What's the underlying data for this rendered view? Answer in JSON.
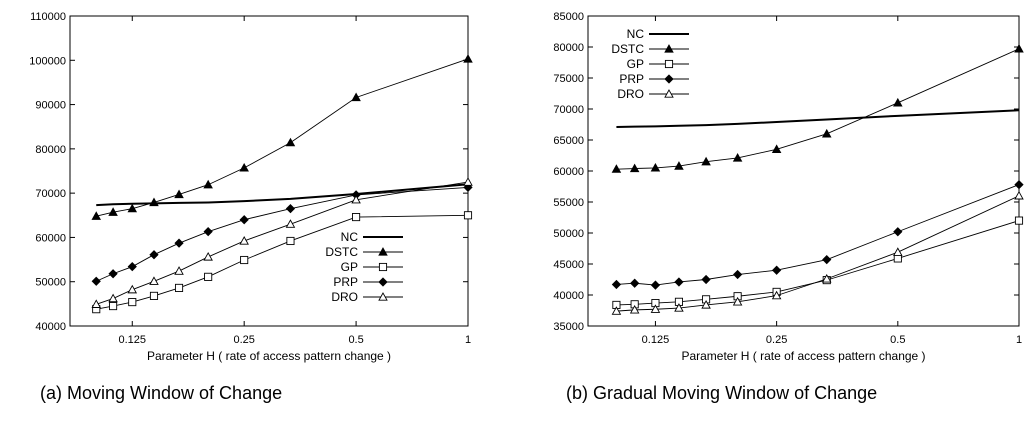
{
  "chart_data": [
    {
      "type": "line",
      "caption": "(a) Moving Window of Change",
      "xlabel": "Parameter H ( rate of access pattern change )",
      "ylabel": "",
      "x": [
        0.1,
        0.111,
        0.125,
        0.143,
        0.167,
        0.2,
        0.25,
        0.333,
        0.5,
        1
      ],
      "xscale": "log",
      "xticks": [
        0.125,
        0.25,
        0.5,
        1
      ],
      "xtick_labels": [
        "0.125",
        "0.25",
        "0.5",
        "1"
      ],
      "xlim": [
        0.085,
        1
      ],
      "ylim": [
        40000,
        110000
      ],
      "yticks": [
        40000,
        50000,
        60000,
        70000,
        80000,
        90000,
        100000,
        110000
      ],
      "ytick_labels": [
        "40000",
        "50000",
        "60000",
        "70000",
        "80000",
        "90000",
        "100000",
        "110000"
      ],
      "legend_position": "bottom-right",
      "series": [
        {
          "name": "NC",
          "marker": "none",
          "values": [
            67300,
            67500,
            67600,
            67700,
            67800,
            67900,
            68200,
            68700,
            69800,
            72000
          ]
        },
        {
          "name": "DSTC",
          "marker": "filled-triangle",
          "values": [
            64800,
            65700,
            66500,
            67900,
            69700,
            71900,
            75700,
            81400,
            91600,
            100300
          ]
        },
        {
          "name": "GP",
          "marker": "open-square",
          "values": [
            43800,
            44500,
            45400,
            46800,
            48600,
            51100,
            54900,
            59200,
            64600,
            65000
          ]
        },
        {
          "name": "PRP",
          "marker": "filled-diamond",
          "values": [
            50100,
            51800,
            53400,
            56100,
            58700,
            61300,
            64000,
            66500,
            69600,
            71300
          ]
        },
        {
          "name": "DRO",
          "marker": "open-triangle",
          "values": [
            44900,
            46200,
            48200,
            50100,
            52400,
            55600,
            59200,
            63000,
            68500,
            72500
          ]
        }
      ]
    },
    {
      "type": "line",
      "caption": "(b) Gradual Moving Window of Change",
      "xlabel": "Parameter H ( rate of access pattern change )",
      "ylabel": "",
      "x": [
        0.1,
        0.111,
        0.125,
        0.143,
        0.167,
        0.2,
        0.25,
        0.333,
        0.5,
        1
      ],
      "xscale": "log",
      "xticks": [
        0.125,
        0.25,
        0.5,
        1
      ],
      "xtick_labels": [
        "0.125",
        "0.25",
        "0.5",
        "1"
      ],
      "xlim": [
        0.085,
        1
      ],
      "ylim": [
        35000,
        85000
      ],
      "yticks": [
        35000,
        40000,
        45000,
        50000,
        55000,
        60000,
        65000,
        70000,
        75000,
        80000,
        85000
      ],
      "ytick_labels": [
        "35000",
        "40000",
        "45000",
        "50000",
        "55000",
        "60000",
        "65000",
        "70000",
        "75000",
        "80000",
        "85000"
      ],
      "legend_position": "top-left",
      "series": [
        {
          "name": "NC",
          "marker": "none",
          "values": [
            67100,
            67150,
            67200,
            67300,
            67400,
            67600,
            67900,
            68300,
            68900,
            69800
          ]
        },
        {
          "name": "DSTC",
          "marker": "filled-triangle",
          "values": [
            60300,
            60400,
            60500,
            60800,
            61500,
            62100,
            63500,
            66000,
            71000,
            79700
          ]
        },
        {
          "name": "GP",
          "marker": "open-square",
          "values": [
            38400,
            38500,
            38700,
            38900,
            39300,
            39800,
            40500,
            42400,
            45900,
            52000
          ]
        },
        {
          "name": "PRP",
          "marker": "filled-diamond",
          "values": [
            41700,
            41900,
            41600,
            42100,
            42500,
            43300,
            44000,
            45700,
            50200,
            57800
          ]
        },
        {
          "name": "DRO",
          "marker": "open-triangle",
          "values": [
            37400,
            37600,
            37700,
            37900,
            38400,
            38900,
            39900,
            42600,
            46900,
            56000
          ]
        }
      ]
    }
  ]
}
